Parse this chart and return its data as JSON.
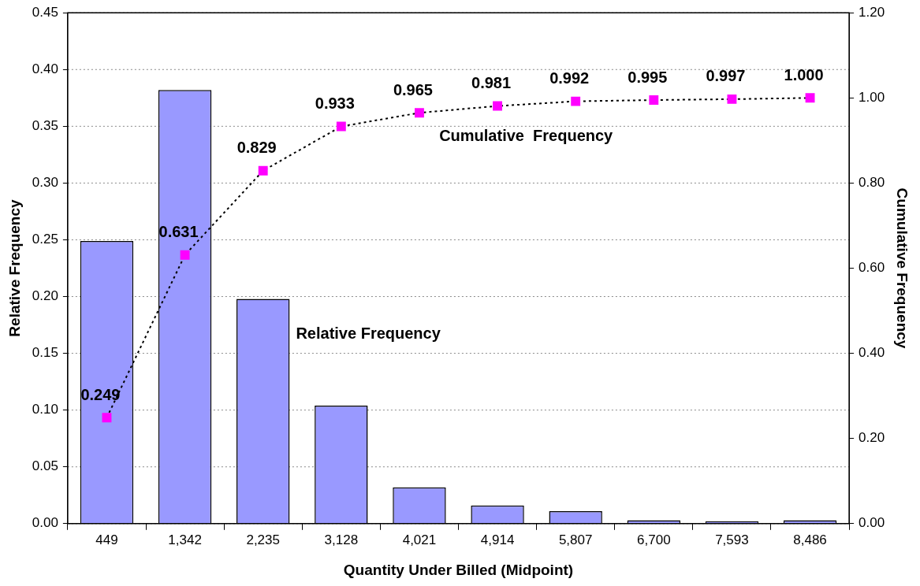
{
  "chart_data": {
    "type": "bar",
    "xlabel": "Quantity Under Billed (Midpoint)",
    "ylabel": "Relative Frequency",
    "y2label": "Cumulative Frequency",
    "categories": [
      "449",
      "1,342",
      "2,235",
      "3,128",
      "4,021",
      "4,914",
      "5,807",
      "6,700",
      "7,593",
      "8,486"
    ],
    "series": [
      {
        "name": "Relative Frequency",
        "color": "#9999ff",
        "values": [
          0.249,
          0.382,
          0.198,
          0.104,
          0.032,
          0.016,
          0.011,
          0.003,
          0.002,
          0.003
        ]
      },
      {
        "name": "Cumulative  Frequency",
        "type": "line",
        "axis": "y2",
        "color": "#ff00ff",
        "marker": "square",
        "line_style": "dotted",
        "values": [
          0.249,
          0.631,
          0.829,
          0.933,
          0.965,
          0.981,
          0.992,
          0.995,
          0.997,
          1.0
        ],
        "value_labels": [
          "0.249",
          "0.631",
          "0.829",
          "0.933",
          "0.965",
          "0.981",
          "0.992",
          "0.995",
          "0.997",
          "1.000"
        ]
      }
    ],
    "ylim": [
      0,
      0.45
    ],
    "yticks": [
      {
        "value": 0,
        "label": "0.00"
      },
      {
        "value": 0.05,
        "label": "0.05"
      },
      {
        "value": 0.1,
        "label": "0.10"
      },
      {
        "value": 0.15,
        "label": "0.15"
      },
      {
        "value": 0.2,
        "label": "0.20"
      },
      {
        "value": 0.25,
        "label": "0.25"
      },
      {
        "value": 0.3,
        "label": "0.30"
      },
      {
        "value": 0.35,
        "label": "0.35"
      },
      {
        "value": 0.4,
        "label": "0.40"
      },
      {
        "value": 0.45,
        "label": "0.45"
      }
    ],
    "y2lim": [
      0,
      1.2
    ],
    "y2ticks": [
      {
        "value": 0,
        "label": "0.00"
      },
      {
        "value": 0.2,
        "label": "0.20"
      },
      {
        "value": 0.4,
        "label": "0.40"
      },
      {
        "value": 0.6,
        "label": "0.60"
      },
      {
        "value": 0.8,
        "label": "0.80"
      },
      {
        "value": 1,
        "label": "1.00"
      },
      {
        "value": 1.2,
        "label": "1.20"
      }
    ],
    "grid": "y",
    "legend": false
  }
}
